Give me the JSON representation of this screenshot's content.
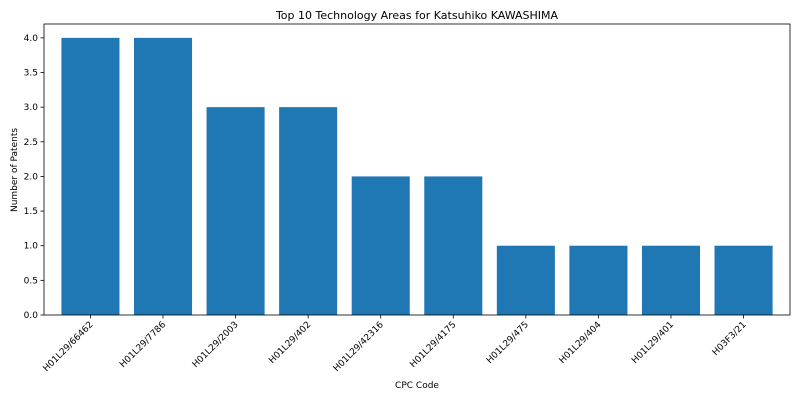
{
  "chart_data": {
    "type": "bar",
    "title": "Top 10 Technology Areas for Katsuhiko KAWASHIMA",
    "xlabel": "CPC Code",
    "ylabel": "Number of Patents",
    "categories": [
      "H01L29/66462",
      "H01L29/7786",
      "H01L29/2003",
      "H01L29/402",
      "H01L29/42316",
      "H01L29/4175",
      "H01L29/475",
      "H01L29/404",
      "H01L29/401",
      "H03F3/21"
    ],
    "values": [
      4,
      4,
      3,
      3,
      2,
      2,
      1,
      1,
      1,
      1
    ],
    "ylim": [
      0,
      4.2
    ],
    "yticks": [
      "0.0",
      "0.5",
      "1.0",
      "1.5",
      "2.0",
      "2.5",
      "3.0",
      "3.5",
      "4.0"
    ],
    "grid": false,
    "bar_color": "#1f77b4"
  }
}
